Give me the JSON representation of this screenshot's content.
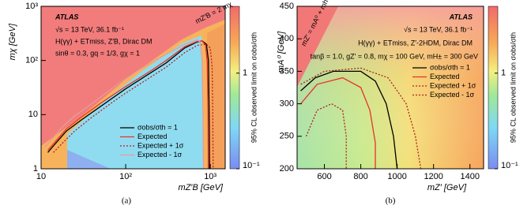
{
  "chart_data": [
    {
      "type": "contour",
      "caption": "(a)",
      "xlabel": "mZ′B [GeV]",
      "ylabel": "mχ [GeV]",
      "zlabel": "95% CL observed limit on σobs/σth",
      "annotations": [
        "ATLAS",
        "√s = 13 TeV, 36.1 fb⁻¹",
        "H(γγ) + ETmiss, Z′B, Dirac DM",
        "sinθ = 0.3, gq = 1/3, gχ = 1",
        "mZ′B = 2 mχ"
      ],
      "xscale": "log",
      "yscale": "log",
      "xlim": [
        10,
        1500
      ],
      "ylim": [
        1,
        1000
      ],
      "xticks": [
        10,
        {
          "value": 100,
          "label": "10²"
        },
        {
          "value": 1000,
          "label": "10³"
        }
      ],
      "yticks": [
        1,
        10,
        {
          "value": 100,
          "label": "10²"
        },
        {
          "value": 1000,
          "label": "10³"
        }
      ],
      "zlim": [
        0.1,
        5
      ],
      "zticks": [
        {
          "value": 0.1,
          "label": "10⁻¹"
        },
        1
      ],
      "series": [
        {
          "name": "σobs/σth = 1",
          "color": "#000000",
          "dash": "solid",
          "x": [
            12,
            15,
            20,
            30,
            50,
            100,
            200,
            300,
            500,
            700,
            800,
            900,
            950,
            970,
            980
          ],
          "y": [
            2,
            3,
            5,
            8,
            14,
            30,
            60,
            90,
            170,
            220,
            230,
            200,
            100,
            10,
            1
          ]
        },
        {
          "name": "Expected",
          "color": "#e8312a",
          "dash": "solid",
          "x": [
            12,
            15,
            20,
            30,
            50,
            100,
            200,
            300,
            500,
            700,
            800,
            880,
            920,
            940,
            950
          ],
          "y": [
            2.2,
            3.3,
            5.5,
            9,
            16,
            33,
            65,
            100,
            180,
            225,
            230,
            190,
            90,
            10,
            1
          ]
        },
        {
          "name": "Expected + 1σ",
          "color": "#b02020",
          "dash": "dotted",
          "x": [
            14,
            18,
            25,
            40,
            70,
            100,
            200,
            300,
            500,
            700,
            900,
            1000,
            1050,
            1070,
            1080
          ],
          "y": [
            2,
            3,
            5,
            9,
            17,
            25,
            50,
            75,
            140,
            190,
            200,
            170,
            80,
            10,
            1
          ]
        },
        {
          "name": "Expected - 1σ",
          "color": "#e89a9a",
          "dash": "solid",
          "x": [
            11,
            14,
            18,
            25,
            40,
            80,
            150,
            300,
            500,
            700,
            760,
            800,
            820,
            830
          ],
          "y": [
            2.5,
            3.8,
            6,
            9.5,
            16,
            36,
            70,
            130,
            200,
            240,
            220,
            100,
            10,
            1
          ]
        }
      ]
    },
    {
      "type": "contour",
      "caption": "(b)",
      "xlabel": "mZ′ [GeV]",
      "ylabel": "mA⁰ [GeV]",
      "zlabel": "95% CL observed limit on σobs/σth",
      "annotations": [
        "ATLAS",
        "√s = 13 TeV, 36.1 fb⁻¹",
        "H(γγ) + ETmiss, Z′-2HDM, Dirac DM",
        "tanβ = 1.0, gZ′ = 0.8, mχ = 100 GeV, mH± = 300 GeV",
        "mZ′ = mA⁰ + mh"
      ],
      "xscale": "linear",
      "yscale": "linear",
      "xlim": [
        450,
        1475
      ],
      "ylim": [
        200,
        450
      ],
      "xticks": [
        600,
        800,
        1000,
        1200,
        1400
      ],
      "yticks": [
        200,
        250,
        300,
        350,
        400,
        450
      ],
      "zlim": [
        0.1,
        5
      ],
      "zticks": [
        {
          "value": 0.1,
          "label": "10⁻¹"
        },
        1
      ],
      "series": [
        {
          "name": "σobs/σth = 1",
          "color": "#000000",
          "dash": "solid",
          "x": [
            470,
            550,
            650,
            800,
            880,
            940,
            980,
            1000
          ],
          "y": [
            320,
            340,
            350,
            350,
            335,
            300,
            250,
            200
          ]
        },
        {
          "name": "Expected",
          "color": "#e8312a",
          "dash": "solid",
          "x": [
            470,
            560,
            700,
            800,
            850,
            880,
            880
          ],
          "y": [
            300,
            330,
            340,
            325,
            290,
            240,
            200
          ]
        },
        {
          "name": "Expected + 1σ",
          "color": "#b02020",
          "dash": "dotted",
          "x": [
            470,
            600,
            800,
            950,
            1050,
            1100,
            1130
          ],
          "y": [
            330,
            350,
            355,
            340,
            300,
            250,
            200
          ]
        },
        {
          "name": "Expected - 1σ",
          "color": "#b02020",
          "dash": "dotted",
          "x": [
            500,
            560,
            640,
            700,
            720,
            720
          ],
          "y": [
            250,
            290,
            300,
            290,
            250,
            200
          ]
        }
      ]
    }
  ]
}
